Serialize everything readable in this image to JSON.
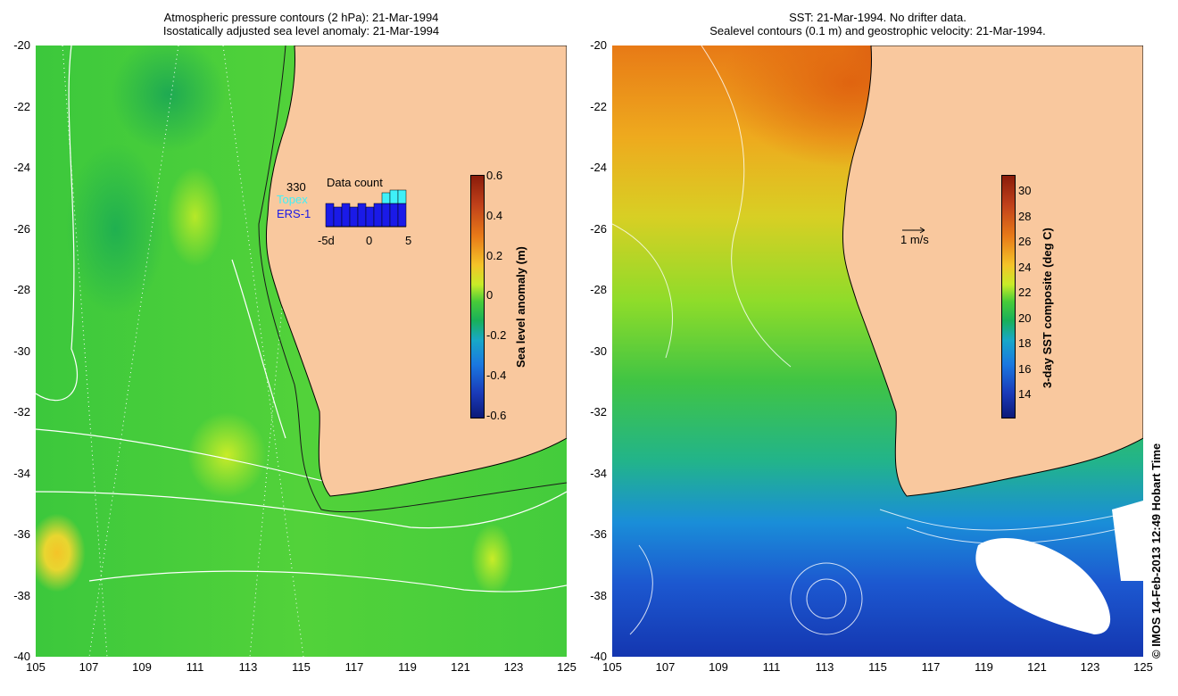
{
  "left": {
    "title_line1": "Atmospheric pressure contours (2 hPa): 21-Mar-1994",
    "title_line2": "Isostatically adjusted sea level anomaly: 21-Mar-1994",
    "colorbar": {
      "label": "Sea level anomaly (m)",
      "ticks": [
        "0.6",
        "0.4",
        "0.2",
        "0",
        "-0.2",
        "-0.4",
        "-0.6"
      ],
      "range": [
        -0.6,
        0.6
      ]
    },
    "data_count": {
      "count_label": "330",
      "topex_label": "Topex",
      "ers_label": "ERS-1",
      "title": "Data count",
      "x_ticks": [
        "-5d",
        "0",
        "5"
      ],
      "topex_color": "#3ff0f8",
      "ers_color": "#1a1ae8"
    }
  },
  "right": {
    "title_line1": "SST: 21-Mar-1994. No drifter data.",
    "title_line2": "Sealevel contours (0.1 m) and geostrophic velocity: 21-Mar-1994.",
    "colorbar": {
      "label": "3-day SST composite (deg C)",
      "ticks": [
        "30",
        "28",
        "26",
        "24",
        "22",
        "20",
        "18",
        "16",
        "14"
      ],
      "range": [
        12.5,
        31.5
      ]
    },
    "scale_label": "1 m/s"
  },
  "axes": {
    "lat_ticks": [
      "-20",
      "-22",
      "-24",
      "-26",
      "-28",
      "-30",
      "-32",
      "-34",
      "-36",
      "-38",
      "-40"
    ],
    "lon_ticks": [
      "105",
      "107",
      "109",
      "111",
      "113",
      "115",
      "117",
      "119",
      "121",
      "123",
      "125"
    ],
    "lat_range": [
      -40,
      -20
    ],
    "lon_range": [
      105,
      125
    ]
  },
  "land_color": "#f9c89e",
  "credit": "© IMOS 14-Feb-2013 12:49 Hobart Time"
}
